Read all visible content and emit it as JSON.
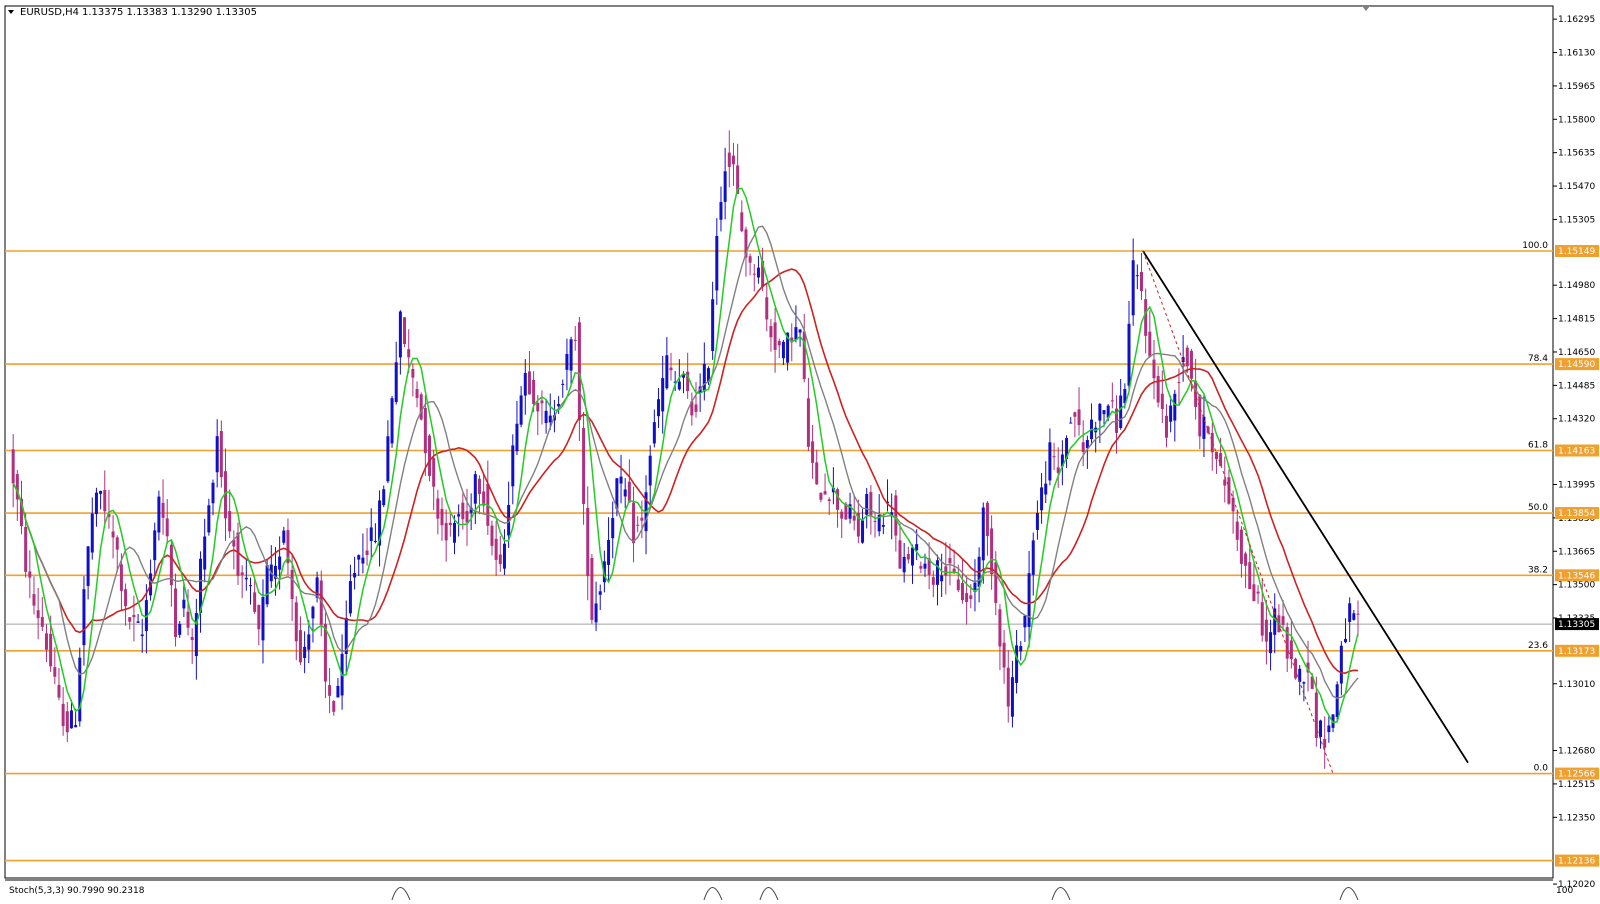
{
  "header": {
    "symbol_label": "EURUSD,H4",
    "ohlc": "1.13375 1.13383 1.13290 1.13305"
  },
  "indicator": {
    "label": "Stoch(5,3,3) 90.7990 90.2318",
    "scale_top": "100"
  },
  "colors": {
    "bull": "#1010c8",
    "bear": "#b0307f",
    "level": "#f0a030",
    "ma_fast": "#22cc22",
    "ma_mid": "#808080",
    "ma_slow": "#cc2222",
    "trendline": "#000000",
    "current_price_bg": "#000000"
  },
  "chart_data": {
    "type": "candlestick",
    "symbol": "EURUSD",
    "timeframe": "H4",
    "current_price": 1.13305,
    "ylim": [
      1.1205,
      1.1636
    ],
    "y_ticks": [
      1.16295,
      1.1613,
      1.15965,
      1.158,
      1.15635,
      1.1547,
      1.15305,
      1.1498,
      1.14815,
      1.1465,
      1.14485,
      1.1432,
      1.13995,
      1.1383,
      1.13665,
      1.135,
      1.13335,
      1.1301,
      1.1268,
      1.12515,
      1.1235,
      1.1202
    ],
    "y_tick_labels": [
      "1.16295",
      "1.16130",
      "1.15965",
      "1.15800",
      "1.15635",
      "1.15470",
      "1.15305",
      "1.14980",
      "1.14815",
      "1.14650",
      "1.14485",
      "1.14320",
      "1.13995",
      "1.13830",
      "1.13665",
      "1.13500",
      "1.13335",
      "1.13010",
      "1.12680",
      "1.12515",
      "1.12350",
      "1.12020"
    ],
    "levels": [
      {
        "price": 1.15149,
        "label": "1.15149",
        "fib": "100.0"
      },
      {
        "price": 1.1459,
        "label": "1.14590",
        "fib": "78.4"
      },
      {
        "price": 1.14163,
        "label": "1.14163",
        "fib": "61.8"
      },
      {
        "price": 1.13854,
        "label": "1.13854",
        "fib": "50.0"
      },
      {
        "price": 1.13546,
        "label": "1.13546",
        "fib": "38.2"
      },
      {
        "price": 1.13173,
        "label": "1.13173",
        "fib": "23.6"
      },
      {
        "price": 1.12566,
        "label": "1.12566",
        "fib": "0.0"
      },
      {
        "price": 1.12136,
        "label": "1.12136",
        "fib": ""
      }
    ],
    "price_path": [
      1.1415,
      1.139,
      1.136,
      1.134,
      1.133,
      1.131,
      1.129,
      1.128,
      1.1285,
      1.1348,
      1.1385,
      1.1395,
      1.138,
      1.1365,
      1.1335,
      1.133,
      1.1325,
      1.136,
      1.1395,
      1.137,
      1.133,
      1.134,
      1.1318,
      1.136,
      1.1387,
      1.1425,
      1.1385,
      1.137,
      1.135,
      1.1345,
      1.1325,
      1.1355,
      1.1355,
      1.138,
      1.1345,
      1.131,
      1.133,
      1.135,
      1.13,
      1.129,
      1.131,
      1.135,
      1.1365,
      1.137,
      1.1375,
      1.14,
      1.1445,
      1.148,
      1.146,
      1.1445,
      1.142,
      1.1395,
      1.138,
      1.1375,
      1.1385,
      1.138,
      1.1405,
      1.1395,
      1.137,
      1.1355,
      1.1395,
      1.1435,
      1.1455,
      1.1445,
      1.1435,
      1.143,
      1.1445,
      1.146,
      1.1475,
      1.1385,
      1.1335,
      1.135,
      1.1375,
      1.14,
      1.1395,
      1.1375,
      1.138,
      1.1415,
      1.144,
      1.146,
      1.145,
      1.145,
      1.1435,
      1.1445,
      1.1462,
      1.1525,
      1.156,
      1.1555,
      1.1525,
      1.1505,
      1.151,
      1.148,
      1.147,
      1.1465,
      1.1475,
      1.1475,
      1.142,
      1.1395,
      1.1398,
      1.1395,
      1.1385,
      1.1385,
      1.1375,
      1.139,
      1.138,
      1.1385,
      1.139,
      1.1355,
      1.1365,
      1.1365,
      1.136,
      1.1355,
      1.136,
      1.1355,
      1.135,
      1.134,
      1.135,
      1.1385,
      1.136,
      1.1325,
      1.129,
      1.1315,
      1.1335,
      1.1375,
      1.1395,
      1.1415,
      1.1405,
      1.1425,
      1.1435,
      1.1415,
      1.143,
      1.1435,
      1.144,
      1.143,
      1.145,
      1.1505,
      1.1495,
      1.146,
      1.1445,
      1.1425,
      1.1445,
      1.1465,
      1.1455,
      1.1425,
      1.143,
      1.141,
      1.14,
      1.1385,
      1.1365,
      1.135,
      1.134,
      1.132,
      1.1335,
      1.1325,
      1.131,
      1.1305,
      1.131,
      1.128,
      1.1275,
      1.1285,
      1.132,
      1.1335,
      1.133
    ]
  }
}
